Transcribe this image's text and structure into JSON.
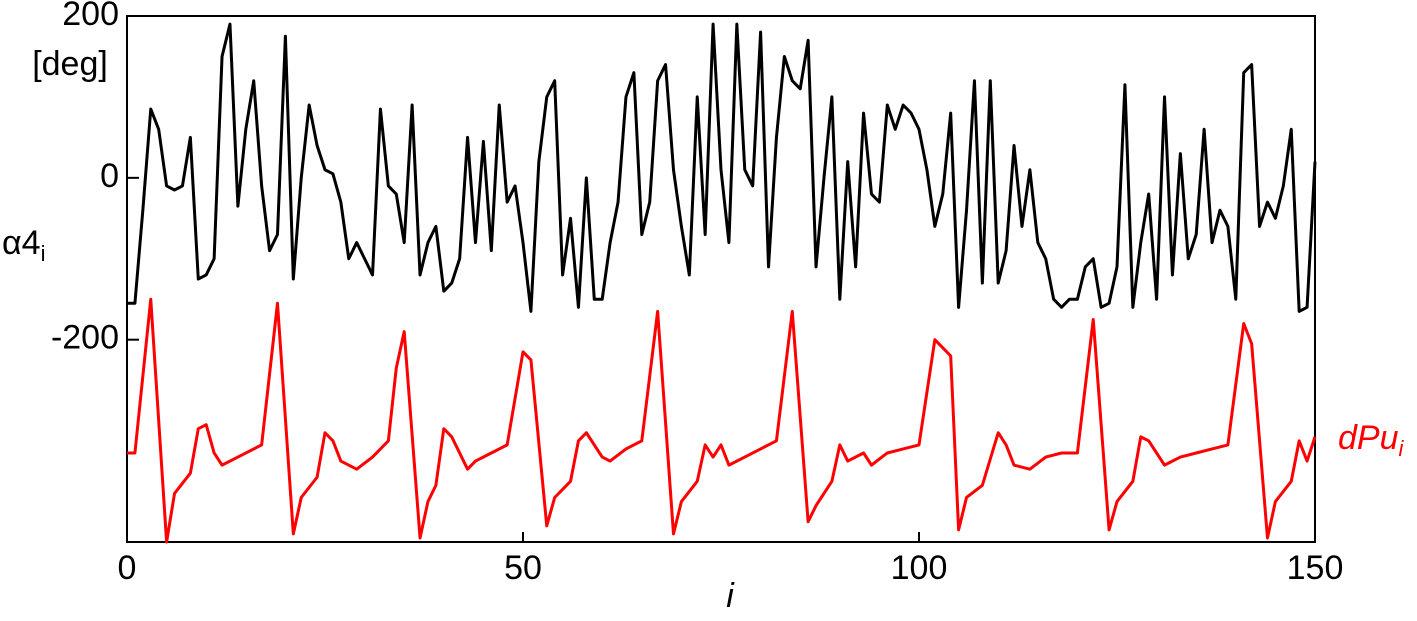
{
  "chart_data": {
    "type": "line",
    "y_unit": "[deg]",
    "xlabel": "i",
    "xlim": [
      0,
      150
    ],
    "xticks": [
      0,
      50,
      100,
      150
    ],
    "ylim": [
      -450,
      200
    ],
    "yticks": [
      200,
      0,
      -200
    ],
    "series": [
      {
        "name": "α4",
        "subscript": "i",
        "color": "#000000",
        "x": [
          0,
          1,
          2,
          3,
          4,
          5,
          6,
          7,
          8,
          9,
          10,
          11,
          12,
          13,
          14,
          15,
          16,
          17,
          18,
          19,
          20,
          21,
          22,
          23,
          24,
          25,
          26,
          27,
          28,
          29,
          30,
          31,
          32,
          33,
          34,
          35,
          36,
          37,
          38,
          39,
          40,
          41,
          42,
          43,
          44,
          45,
          46,
          47,
          48,
          49,
          50,
          51,
          52,
          53,
          54,
          55,
          56,
          57,
          58,
          59,
          60,
          61,
          62,
          63,
          64,
          65,
          66,
          67,
          68,
          69,
          70,
          71,
          72,
          73,
          74,
          75,
          76,
          77,
          78,
          79,
          80,
          81,
          82,
          83,
          84,
          85,
          86,
          87,
          88,
          89,
          90,
          91,
          92,
          93,
          94,
          95,
          96,
          97,
          98,
          99,
          100,
          101,
          102,
          103,
          104,
          105,
          106,
          107,
          108,
          109,
          110,
          111,
          112,
          113,
          114,
          115,
          116,
          117,
          118,
          119,
          120,
          121,
          122,
          123,
          124,
          125,
          126,
          127,
          128,
          129,
          130,
          131,
          132,
          133,
          134,
          135,
          136,
          137,
          138,
          139,
          140,
          141,
          142,
          143,
          144,
          145,
          146,
          147,
          148,
          149,
          150
        ],
        "values": [
          -155,
          -155,
          -40,
          85,
          60,
          -10,
          -15,
          -10,
          50,
          -125,
          -120,
          -100,
          150,
          190,
          -35,
          60,
          120,
          -10,
          -90,
          -70,
          175,
          -125,
          0,
          90,
          40,
          10,
          5,
          -30,
          -100,
          -80,
          -100,
          -120,
          85,
          -10,
          -20,
          -80,
          90,
          -120,
          -80,
          -60,
          -140,
          -130,
          -100,
          50,
          -80,
          45,
          -90,
          90,
          -30,
          -10,
          -80,
          -165,
          20,
          100,
          120,
          -120,
          -50,
          -160,
          0,
          -150,
          -150,
          -80,
          -30,
          100,
          130,
          -70,
          -30,
          120,
          140,
          10,
          -60,
          -120,
          100,
          -70,
          190,
          10,
          -80,
          190,
          10,
          -10,
          180,
          -110,
          50,
          150,
          120,
          110,
          170,
          -110,
          0,
          100,
          -150,
          20,
          -110,
          80,
          -20,
          -30,
          90,
          60,
          90,
          80,
          60,
          10,
          -60,
          -20,
          80,
          -160,
          -40,
          120,
          -130,
          120,
          -130,
          -90,
          40,
          -60,
          10,
          -80,
          -100,
          -150,
          -160,
          -150,
          -150,
          -110,
          -100,
          -160,
          -155,
          -110,
          115,
          -160,
          -80,
          -20,
          -150,
          100,
          -120,
          30,
          -100,
          -70,
          60,
          -80,
          -40,
          -60,
          -150,
          130,
          140,
          -60,
          -30,
          -50,
          -10,
          60,
          -165,
          -160,
          20
        ]
      },
      {
        "name": "dPu",
        "subscript": "i",
        "color": "#ff0000",
        "x": [
          0,
          1,
          3,
          5,
          6,
          8,
          9,
          10,
          11,
          12,
          14,
          17,
          19,
          21,
          22,
          24,
          25,
          26,
          27,
          29,
          31,
          33,
          34,
          35,
          37,
          38,
          39,
          40,
          41,
          43,
          44,
          46,
          48,
          50,
          51,
          53,
          54,
          56,
          57,
          58,
          60,
          61,
          63,
          65,
          67,
          69,
          70,
          72,
          73,
          74,
          75,
          76,
          78,
          80,
          82,
          84,
          86,
          87,
          89,
          90,
          91,
          93,
          94,
          96,
          98,
          100,
          102,
          104,
          105,
          106,
          108,
          110,
          111,
          112,
          114,
          116,
          118,
          120,
          122,
          124,
          125,
          127,
          128,
          129,
          131,
          133,
          135,
          137,
          139,
          141,
          142,
          144,
          145,
          147,
          148,
          149,
          150
        ],
        "values": [
          -340,
          -340,
          -150,
          -450,
          -390,
          -365,
          -310,
          -305,
          -340,
          -355,
          -345,
          -330,
          -155,
          -440,
          -395,
          -370,
          -315,
          -325,
          -350,
          -360,
          -345,
          -325,
          -235,
          -190,
          -445,
          -400,
          -380,
          -310,
          -320,
          -360,
          -350,
          -340,
          -330,
          -215,
          -225,
          -430,
          -395,
          -375,
          -325,
          -315,
          -345,
          -350,
          -335,
          -325,
          -165,
          -440,
          -400,
          -375,
          -330,
          -345,
          -330,
          -355,
          -345,
          -335,
          -325,
          -165,
          -425,
          -405,
          -375,
          -330,
          -350,
          -340,
          -355,
          -340,
          -335,
          -330,
          -200,
          -220,
          -435,
          -395,
          -380,
          -315,
          -330,
          -355,
          -360,
          -345,
          -340,
          -340,
          -175,
          -435,
          -400,
          -375,
          -320,
          -325,
          -355,
          -345,
          -340,
          -335,
          -330,
          -180,
          -205,
          -445,
          -400,
          -375,
          -325,
          -350,
          -320
        ]
      }
    ]
  }
}
